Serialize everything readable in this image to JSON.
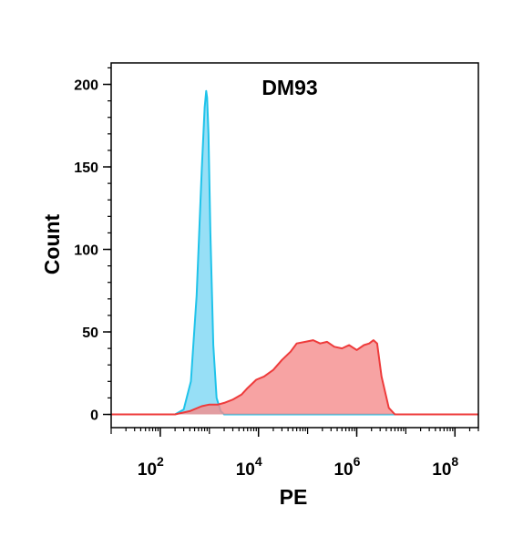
{
  "chart_data": {
    "type": "area",
    "title": "DM93",
    "xlabel": "PE",
    "ylabel": "Count",
    "xscale": "log",
    "xlim": [
      10,
      300000000
    ],
    "ylim": [
      -8,
      213
    ],
    "x_ticks": [
      {
        "value": 100,
        "base": "10",
        "exp": "2"
      },
      {
        "value": 10000,
        "base": "10",
        "exp": "4"
      },
      {
        "value": 1000000,
        "base": "10",
        "exp": "6"
      },
      {
        "value": 100000000,
        "base": "10",
        "exp": "8"
      }
    ],
    "y_ticks": [
      0,
      50,
      100,
      150,
      200
    ],
    "grid": false,
    "legend": "none",
    "series": [
      {
        "fill": "#6fd3f2",
        "fill_opacity": 0.72,
        "stroke": "#1fc3ea",
        "x": [
          10,
          200,
          300,
          420,
          550,
          700,
          800,
          860,
          900,
          960,
          1050,
          1200,
          1400,
          1700,
          2000,
          3000,
          10000,
          300000000
        ],
        "y": [
          0,
          0,
          3,
          20,
          72,
          148,
          186,
          196,
          192,
          170,
          110,
          42,
          10,
          2,
          0,
          0,
          0,
          0
        ]
      },
      {
        "fill": "#f58c8c",
        "fill_opacity": 0.8,
        "stroke": "#ee3b3b",
        "x": [
          10,
          200,
          400,
          700,
          1000,
          1500,
          2000,
          3000,
          4500,
          6000,
          9000,
          13000,
          20000,
          30000,
          45000,
          60000,
          90000,
          130000,
          180000,
          250000,
          350000,
          500000,
          700000,
          1000000,
          1400000,
          1800000,
          2200000,
          2600000,
          3200000,
          4500000,
          6000000,
          10000000,
          300000000
        ],
        "y": [
          0,
          0,
          2,
          5,
          6,
          6,
          7,
          9,
          12,
          16,
          21,
          23,
          27,
          33,
          38,
          43,
          44,
          45,
          43,
          44,
          41,
          40,
          42,
          39,
          42,
          43,
          45,
          43,
          23,
          4,
          0,
          0,
          0
        ]
      }
    ]
  }
}
